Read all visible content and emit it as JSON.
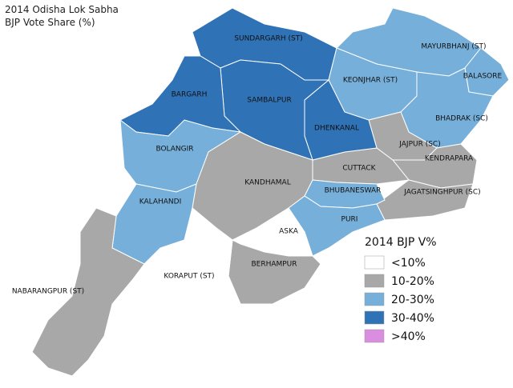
{
  "title": [
    "2014 Odisha Lok Sabha",
    "BJP Vote Share (%)"
  ],
  "regions": [
    {
      "name": "SUNDARGARH (ST)",
      "color": "#2f72b5"
    },
    {
      "name": "MAYURBHANJ (ST)",
      "color": "#76afda"
    },
    {
      "name": "BALASORE",
      "color": "#76afda"
    },
    {
      "name": "KEONJHAR (ST)",
      "color": "#76afda"
    },
    {
      "name": "BHADRAK (SC)",
      "color": "#76afda"
    },
    {
      "name": "JAJPUR (SC)",
      "color": "#a8a8a8"
    },
    {
      "name": "KENDRAPARA",
      "color": "#a8a8a8"
    },
    {
      "name": "JAGATSINGHPUR (SC)",
      "color": "#a8a8a8"
    },
    {
      "name": "CUTTACK",
      "color": "#a8a8a8"
    },
    {
      "name": "DHENKANAL",
      "color": "#2f72b5"
    },
    {
      "name": "SAMBALPUR",
      "color": "#2f72b5"
    },
    {
      "name": "BARGARH",
      "color": "#2f72b5"
    },
    {
      "name": "BOLANGIR",
      "color": "#76afda"
    },
    {
      "name": "KALAHANDI",
      "color": "#76afda"
    },
    {
      "name": "KANDHAMAL",
      "color": "#a8a8a8"
    },
    {
      "name": "BHUBANESWAR",
      "color": "#76afda"
    },
    {
      "name": "PURI",
      "color": "#76afda"
    },
    {
      "name": "ASKA",
      "color": "#ffffff"
    },
    {
      "name": "BERHAMPUR",
      "color": "#a8a8a8"
    },
    {
      "name": "KORAPUT (ST)",
      "color": "#ffffff"
    },
    {
      "name": "NABARANGPUR (ST)",
      "color": "#a8a8a8"
    }
  ],
  "legend": {
    "title": "2014 BJP V%",
    "items": [
      {
        "label": "<10%",
        "color": "#ffffff"
      },
      {
        "label": "10-20%",
        "color": "#a8a8a8"
      },
      {
        "label": "20-30%",
        "color": "#76afda"
      },
      {
        "label": "30-40%",
        "color": "#2f72b5"
      },
      {
        "label": ">40%",
        "color": "#d98ee0"
      }
    ]
  }
}
